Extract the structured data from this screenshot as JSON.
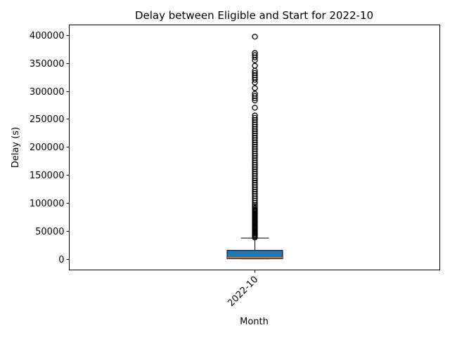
{
  "chart_data": {
    "type": "box",
    "title": "Delay between Eligible and Start for 2022-10",
    "xlabel": "Month",
    "ylabel": "Delay (s)",
    "categories": [
      "2022-10"
    ],
    "ylim": [
      -20000,
      418000
    ],
    "yticks": [
      0,
      50000,
      100000,
      150000,
      200000,
      250000,
      300000,
      350000,
      400000
    ],
    "ytick_labels": [
      "0",
      "50000",
      "100000",
      "150000",
      "200000",
      "250000",
      "300000",
      "350000",
      "400000"
    ],
    "grid": false,
    "legend": "none",
    "colors": {
      "box_fill": "#1f77b4",
      "median": "#ff7f0e",
      "outline": "#000000"
    },
    "boxes": [
      {
        "category": "2022-10",
        "whisker_low": 0,
        "q1": 0,
        "median": 1500,
        "q3": 15000,
        "whisker_high": 37000,
        "outliers": [
          38000,
          40000,
          42000,
          44000,
          46000,
          48000,
          50000,
          52000,
          54000,
          56000,
          58000,
          60000,
          62000,
          64000,
          66000,
          68000,
          70000,
          72000,
          74000,
          76000,
          78000,
          80000,
          82000,
          84000,
          86000,
          88000,
          90000,
          93000,
          96000,
          100000,
          104000,
          108000,
          112000,
          116000,
          120000,
          124000,
          128000,
          132000,
          136000,
          140000,
          144000,
          148000,
          152000,
          156000,
          160000,
          164000,
          168000,
          172000,
          176000,
          180000,
          184000,
          188000,
          192000,
          196000,
          200000,
          204000,
          208000,
          212000,
          216000,
          220000,
          224000,
          228000,
          232000,
          236000,
          240000,
          244000,
          248000,
          252000,
          256000,
          270000,
          283000,
          287000,
          291000,
          295000,
          305000,
          315000,
          320000,
          324000,
          328000,
          332000,
          336000,
          345000,
          355000,
          360000,
          364000,
          368000,
          397000
        ]
      }
    ]
  }
}
